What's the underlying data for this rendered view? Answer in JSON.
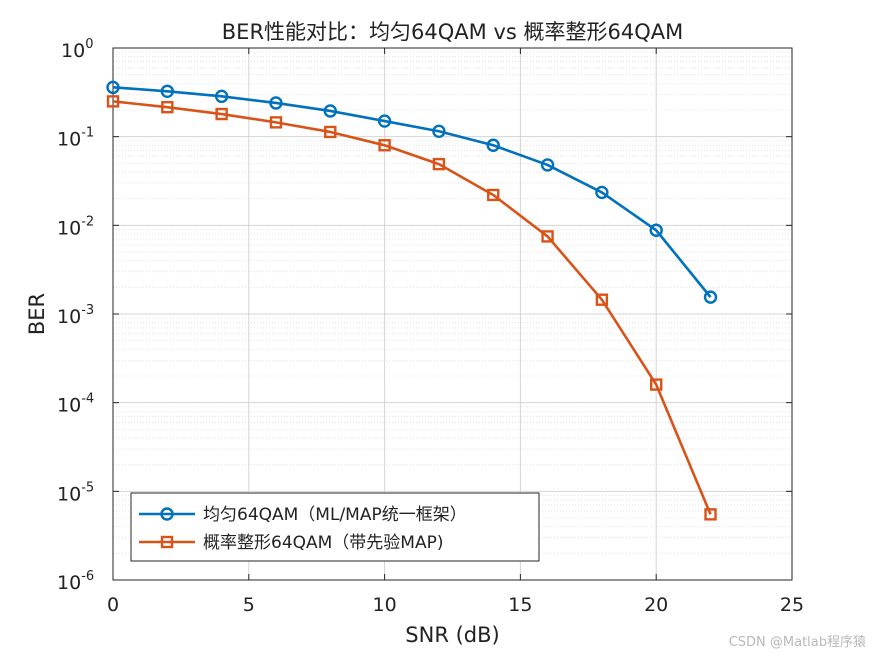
{
  "chart_data": {
    "type": "line",
    "title": "BER性能对比：均匀64QAM vs 概率整形64QAM",
    "xlabel": "SNR (dB)",
    "ylabel": "BER",
    "xlim": [
      0,
      25
    ],
    "ylim": [
      1e-06,
      1
    ],
    "yscale": "log",
    "grid": true,
    "legend_position": "bottom-left",
    "x_ticks": [
      "0",
      "5",
      "10",
      "15",
      "20",
      "25"
    ],
    "y_ticks": [
      {
        "base": "10",
        "exp": "0"
      },
      {
        "base": "10",
        "exp": "-1"
      },
      {
        "base": "10",
        "exp": "-2"
      },
      {
        "base": "10",
        "exp": "-3"
      },
      {
        "base": "10",
        "exp": "-4"
      },
      {
        "base": "10",
        "exp": "-5"
      },
      {
        "base": "10",
        "exp": "-6"
      }
    ],
    "x": [
      0,
      2,
      4,
      6,
      8,
      10,
      12,
      14,
      16,
      18,
      20,
      22
    ],
    "series": [
      {
        "name": "均匀64QAM（ML/MAP统一框架）",
        "color": "#0072BD",
        "marker": "circle",
        "values": [
          0.36,
          0.325,
          0.285,
          0.24,
          0.195,
          0.15,
          0.115,
          0.08,
          0.048,
          0.0235,
          0.0088,
          0.00155
        ]
      },
      {
        "name": "概率整形64QAM（带先验MAP)",
        "color": "#D95319",
        "marker": "square",
        "values": [
          0.25,
          0.215,
          0.18,
          0.145,
          0.113,
          0.08,
          0.049,
          0.022,
          0.0075,
          0.00145,
          0.00016,
          5.5e-06
        ]
      }
    ]
  },
  "watermark": "CSDN @Matlab程序猿"
}
